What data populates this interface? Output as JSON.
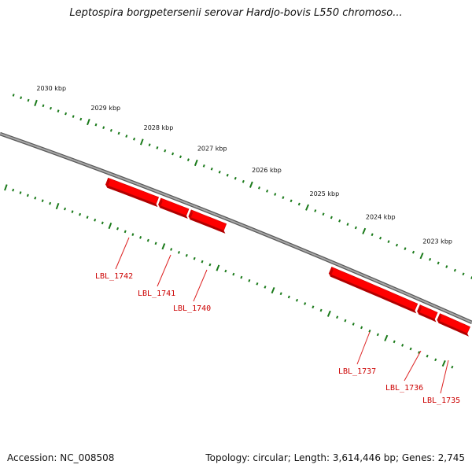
{
  "title": "Leptospira borgpetersenii serovar Hardjo-bovis L550 chromoso...",
  "footer": {
    "accession": "Accession: NC_008508",
    "summary": "Topology: circular; Length: 3,614,446 bp; Genes: 2,745"
  },
  "colors": {
    "backbone": "#808080",
    "tick": "#1a7a1a",
    "gene": "#ff0000",
    "gene_label": "#cc0000"
  },
  "ticks": [
    {
      "label": "2030 kbp"
    },
    {
      "label": "2029 kbp"
    },
    {
      "label": "2028 kbp"
    },
    {
      "label": "2027 kbp"
    },
    {
      "label": "2026 kbp"
    },
    {
      "label": "2025 kbp"
    },
    {
      "label": "2024 kbp"
    },
    {
      "label": "2023 kbp"
    }
  ],
  "genes": [
    {
      "label": "LBL_1742"
    },
    {
      "label": "LBL_1741"
    },
    {
      "label": "LBL_1740"
    },
    {
      "label": "LBL_1737"
    },
    {
      "label": "LBL_1736"
    },
    {
      "label": "LBL_1735"
    }
  ]
}
